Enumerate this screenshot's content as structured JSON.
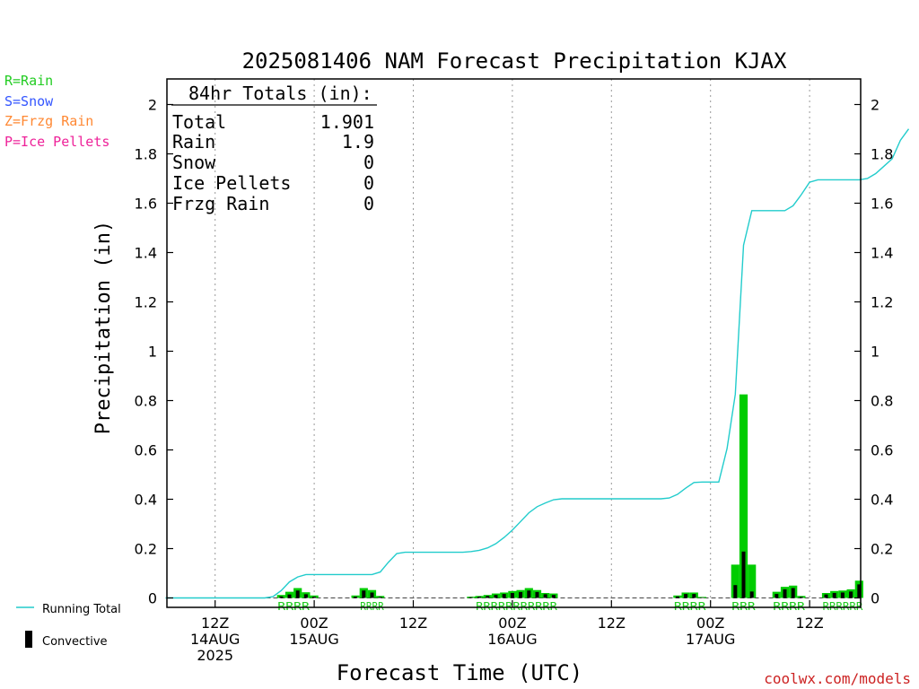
{
  "chart_data": {
    "type": "bar",
    "title": "2025081406 NAM Forecast Precipitation KJAX",
    "xlabel": "Forecast Time (UTC)",
    "ylabel": "Precipitation (in)",
    "ylim": [
      0,
      2.1
    ],
    "xlim_hours": [
      -6,
      78
    ],
    "y_ticks": [
      0,
      0.2,
      0.4,
      0.6,
      0.8,
      1,
      1.2,
      1.4,
      1.6,
      1.8,
      2
    ],
    "y_tick_labels": [
      "0",
      "0.2",
      "0.4",
      "0.6",
      "0.8",
      "1",
      "1.2",
      "1.4",
      "1.6",
      "1.8",
      "2"
    ],
    "grid": "vertical dotted lines at 12-hour ticks",
    "x_ticks": [
      {
        "hour": 6,
        "lines": [
          "12Z",
          "14AUG",
          "2025"
        ]
      },
      {
        "hour": 18,
        "lines": [
          "00Z",
          "15AUG"
        ]
      },
      {
        "hour": 30,
        "lines": [
          "12Z"
        ]
      },
      {
        "hour": 42,
        "lines": [
          "00Z",
          "16AUG"
        ]
      },
      {
        "hour": 54,
        "lines": [
          "12Z"
        ]
      },
      {
        "hour": 66,
        "lines": [
          "00Z",
          "17AUG"
        ]
      },
      {
        "hour": 78,
        "lines": [
          "12Z"
        ]
      }
    ],
    "hourly": [
      {
        "x": 14,
        "total": 0.012,
        "conv": 0.006
      },
      {
        "x": 15,
        "total": 0.025,
        "conv": 0.014
      },
      {
        "x": 16,
        "total": 0.04,
        "conv": 0.03
      },
      {
        "x": 17,
        "total": 0.023,
        "conv": 0.015
      },
      {
        "x": 18,
        "total": 0.01,
        "conv": 0.005
      },
      {
        "x": 23,
        "total": 0.01,
        "conv": 0.005
      },
      {
        "x": 24,
        "total": 0.04,
        "conv": 0.03
      },
      {
        "x": 25,
        "total": 0.032,
        "conv": 0.022
      },
      {
        "x": 26,
        "total": 0.008,
        "conv": 0.004
      },
      {
        "x": 37,
        "total": 0.005,
        "conv": 0.003
      },
      {
        "x": 38,
        "total": 0.008,
        "conv": 0.005
      },
      {
        "x": 39,
        "total": 0.012,
        "conv": 0.008
      },
      {
        "x": 40,
        "total": 0.018,
        "conv": 0.012
      },
      {
        "x": 41,
        "total": 0.022,
        "conv": 0.016
      },
      {
        "x": 42,
        "total": 0.028,
        "conv": 0.02
      },
      {
        "x": 43,
        "total": 0.032,
        "conv": 0.024
      },
      {
        "x": 44,
        "total": 0.04,
        "conv": 0.03
      },
      {
        "x": 45,
        "total": 0.032,
        "conv": 0.024
      },
      {
        "x": 46,
        "total": 0.02,
        "conv": 0.015
      },
      {
        "x": 47,
        "total": 0.018,
        "conv": 0.012
      },
      {
        "x": 62,
        "total": 0.01,
        "conv": 0.006
      },
      {
        "x": 63,
        "total": 0.022,
        "conv": 0.016
      },
      {
        "x": 64,
        "total": 0.022,
        "conv": 0.016
      },
      {
        "x": 65,
        "total": 0.004,
        "conv": 0.002
      },
      {
        "x": 69,
        "total": 0.135,
        "conv": 0.052
      },
      {
        "x": 70,
        "total": 0.825,
        "conv": 0.188
      },
      {
        "x": 71,
        "total": 0.135,
        "conv": 0.026
      },
      {
        "x": 74,
        "total": 0.025,
        "conv": 0.016
      },
      {
        "x": 75,
        "total": 0.045,
        "conv": 0.035
      },
      {
        "x": 76,
        "total": 0.05,
        "conv": 0.04
      },
      {
        "x": 77,
        "total": 0.008,
        "conv": 0.004
      },
      {
        "x": 80,
        "total": 0.02,
        "conv": 0.014
      },
      {
        "x": 81,
        "total": 0.028,
        "conv": 0.02
      },
      {
        "x": 82,
        "total": 0.03,
        "conv": 0.022
      },
      {
        "x": 83,
        "total": 0.035,
        "conv": 0.026
      },
      {
        "x": 84,
        "total": 0.07,
        "conv": 0.055
      }
    ],
    "running_total": [
      {
        "x": 0,
        "y": 0
      },
      {
        "x": 12,
        "y": 0
      },
      {
        "x": 13,
        "y": 0.005
      },
      {
        "x": 14,
        "y": 0.03
      },
      {
        "x": 15,
        "y": 0.065
      },
      {
        "x": 16,
        "y": 0.085
      },
      {
        "x": 17,
        "y": 0.095
      },
      {
        "x": 18,
        "y": 0.095
      },
      {
        "x": 25,
        "y": 0.095
      },
      {
        "x": 26,
        "y": 0.105
      },
      {
        "x": 27,
        "y": 0.145
      },
      {
        "x": 28,
        "y": 0.18
      },
      {
        "x": 29,
        "y": 0.185
      },
      {
        "x": 36,
        "y": 0.185
      },
      {
        "x": 37,
        "y": 0.188
      },
      {
        "x": 38,
        "y": 0.193
      },
      {
        "x": 39,
        "y": 0.203
      },
      {
        "x": 40,
        "y": 0.22
      },
      {
        "x": 41,
        "y": 0.245
      },
      {
        "x": 42,
        "y": 0.275
      },
      {
        "x": 43,
        "y": 0.31
      },
      {
        "x": 44,
        "y": 0.345
      },
      {
        "x": 45,
        "y": 0.37
      },
      {
        "x": 46,
        "y": 0.385
      },
      {
        "x": 47,
        "y": 0.398
      },
      {
        "x": 48,
        "y": 0.402
      },
      {
        "x": 60,
        "y": 0.402
      },
      {
        "x": 61,
        "y": 0.405
      },
      {
        "x": 62,
        "y": 0.42
      },
      {
        "x": 63,
        "y": 0.445
      },
      {
        "x": 64,
        "y": 0.468
      },
      {
        "x": 65,
        "y": 0.47
      },
      {
        "x": 67,
        "y": 0.47
      },
      {
        "x": 68,
        "y": 0.605
      },
      {
        "x": 69,
        "y": 0.825
      },
      {
        "x": 70,
        "y": 1.43
      },
      {
        "x": 71,
        "y": 1.57
      },
      {
        "x": 73,
        "y": 1.57
      },
      {
        "x": 75,
        "y": 1.57
      },
      {
        "x": 76,
        "y": 1.59
      },
      {
        "x": 77,
        "y": 1.635
      },
      {
        "x": 78,
        "y": 1.685
      },
      {
        "x": 79,
        "y": 1.695
      },
      {
        "x": 84,
        "y": 1.695
      },
      {
        "x": 85,
        "y": 1.7
      },
      {
        "x": 86,
        "y": 1.72
      },
      {
        "x": 87,
        "y": 1.75
      },
      {
        "x": 88,
        "y": 1.78
      },
      {
        "x": 89,
        "y": 1.855
      },
      {
        "x": 90,
        "y": 1.901
      }
    ],
    "precip_type_labels": [
      {
        "x_start": 14,
        "x_end": 17,
        "text": "RRRR"
      },
      {
        "x_start": 24,
        "x_end": 26,
        "text": "RRRR"
      },
      {
        "x_start": 38,
        "x_end": 47,
        "text": "RRRRRRRRRRR"
      },
      {
        "x_start": 62,
        "x_end": 65,
        "text": "RRRR"
      },
      {
        "x_start": 69,
        "x_end": 71,
        "text": "RRR"
      },
      {
        "x_start": 74,
        "x_end": 77,
        "text": "RRRR"
      },
      {
        "x_start": 80,
        "x_end": 84,
        "text": "RRRRRR"
      }
    ],
    "totals_box": {
      "heading": "84hr Totals (in):",
      "rows": [
        {
          "label": "Total",
          "value": "1.901"
        },
        {
          "label": "Rain",
          "value": "1.9"
        },
        {
          "label": "Snow",
          "value": "0"
        },
        {
          "label": "Ice Pellets",
          "value": "0"
        },
        {
          "label": "Frzg Rain",
          "value": "0"
        }
      ]
    },
    "legend": {
      "placement": "left",
      "type_keys": [
        {
          "text": "R=Rain",
          "color": "#22cc22"
        },
        {
          "text": "S=Snow",
          "color": "#3355ff"
        },
        {
          "text": "Z=Frzg Rain",
          "color": "#ff8833"
        },
        {
          "text": "P=Ice Pellets",
          "color": "#ee2299"
        }
      ],
      "running_total_label": "Running Total",
      "convective_label": "Convective"
    },
    "colors": {
      "rain_bar": "#00cc00",
      "convective_bar": "#000000",
      "running_total_line": "#22cccc",
      "rain_label": "#22cc22",
      "credit": "#cc2222"
    },
    "credit": "coolwx.com/models"
  }
}
